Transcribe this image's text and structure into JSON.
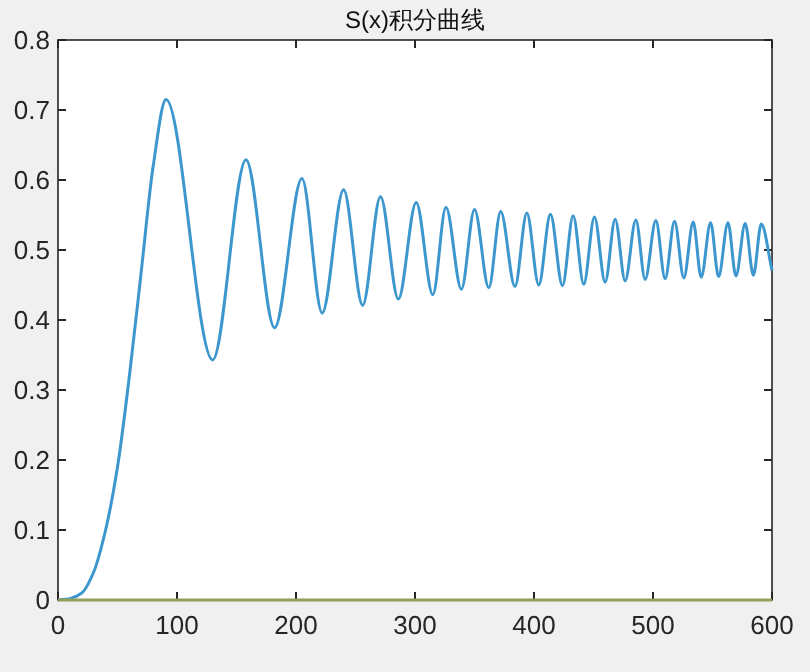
{
  "chart_data": {
    "type": "line",
    "title": "S(x)积分曲线",
    "xlim": [
      0,
      600
    ],
    "ylim": [
      0,
      0.8
    ],
    "xticks": [
      0,
      100,
      200,
      300,
      400,
      500,
      600
    ],
    "yticks": [
      0,
      0.1,
      0.2,
      0.3,
      0.4,
      0.5,
      0.6,
      0.7,
      0.8
    ],
    "grid": false,
    "marker": "none",
    "line_style": "solid",
    "series": [
      {
        "color": "#3d97cf",
        "x": [
          0,
          10,
          20,
          30,
          40,
          50,
          60,
          70,
          80,
          90.8,
          130,
          158,
          182,
          205,
          222,
          240,
          256,
          271,
          286,
          301,
          315,
          326,
          339,
          350,
          362,
          372,
          384,
          394,
          404,
          413.8,
          423.9,
          432.9,
          441.8,
          450.8,
          459.8,
          468.2,
          476.6,
          485.6,
          493.4,
          502.4,
          510.2,
          518.1,
          525.9,
          533.8,
          540.5,
          548.4,
          555.1,
          563,
          569.7,
          577.5,
          584.3,
          591,
          600
        ],
        "values": [
          0,
          0.002,
          0.01,
          0.04,
          0.1,
          0.19,
          0.32,
          0.47,
          0.62,
          0.715,
          0.343,
          0.629,
          0.389,
          0.602,
          0.41,
          0.586,
          0.421,
          0.576,
          0.43,
          0.568,
          0.436,
          0.561,
          0.444,
          0.558,
          0.446,
          0.555,
          0.448,
          0.553,
          0.45,
          0.551,
          0.449,
          0.549,
          0.451,
          0.547,
          0.454,
          0.544,
          0.456,
          0.543,
          0.458,
          0.542,
          0.459,
          0.541,
          0.46,
          0.54,
          0.461,
          0.539,
          0.462,
          0.539,
          0.463,
          0.538,
          0.464,
          0.537,
          0.471
        ]
      },
      {
        "color": "#8fa05a",
        "x": [
          0,
          600
        ],
        "values": [
          0,
          0
        ]
      }
    ]
  }
}
